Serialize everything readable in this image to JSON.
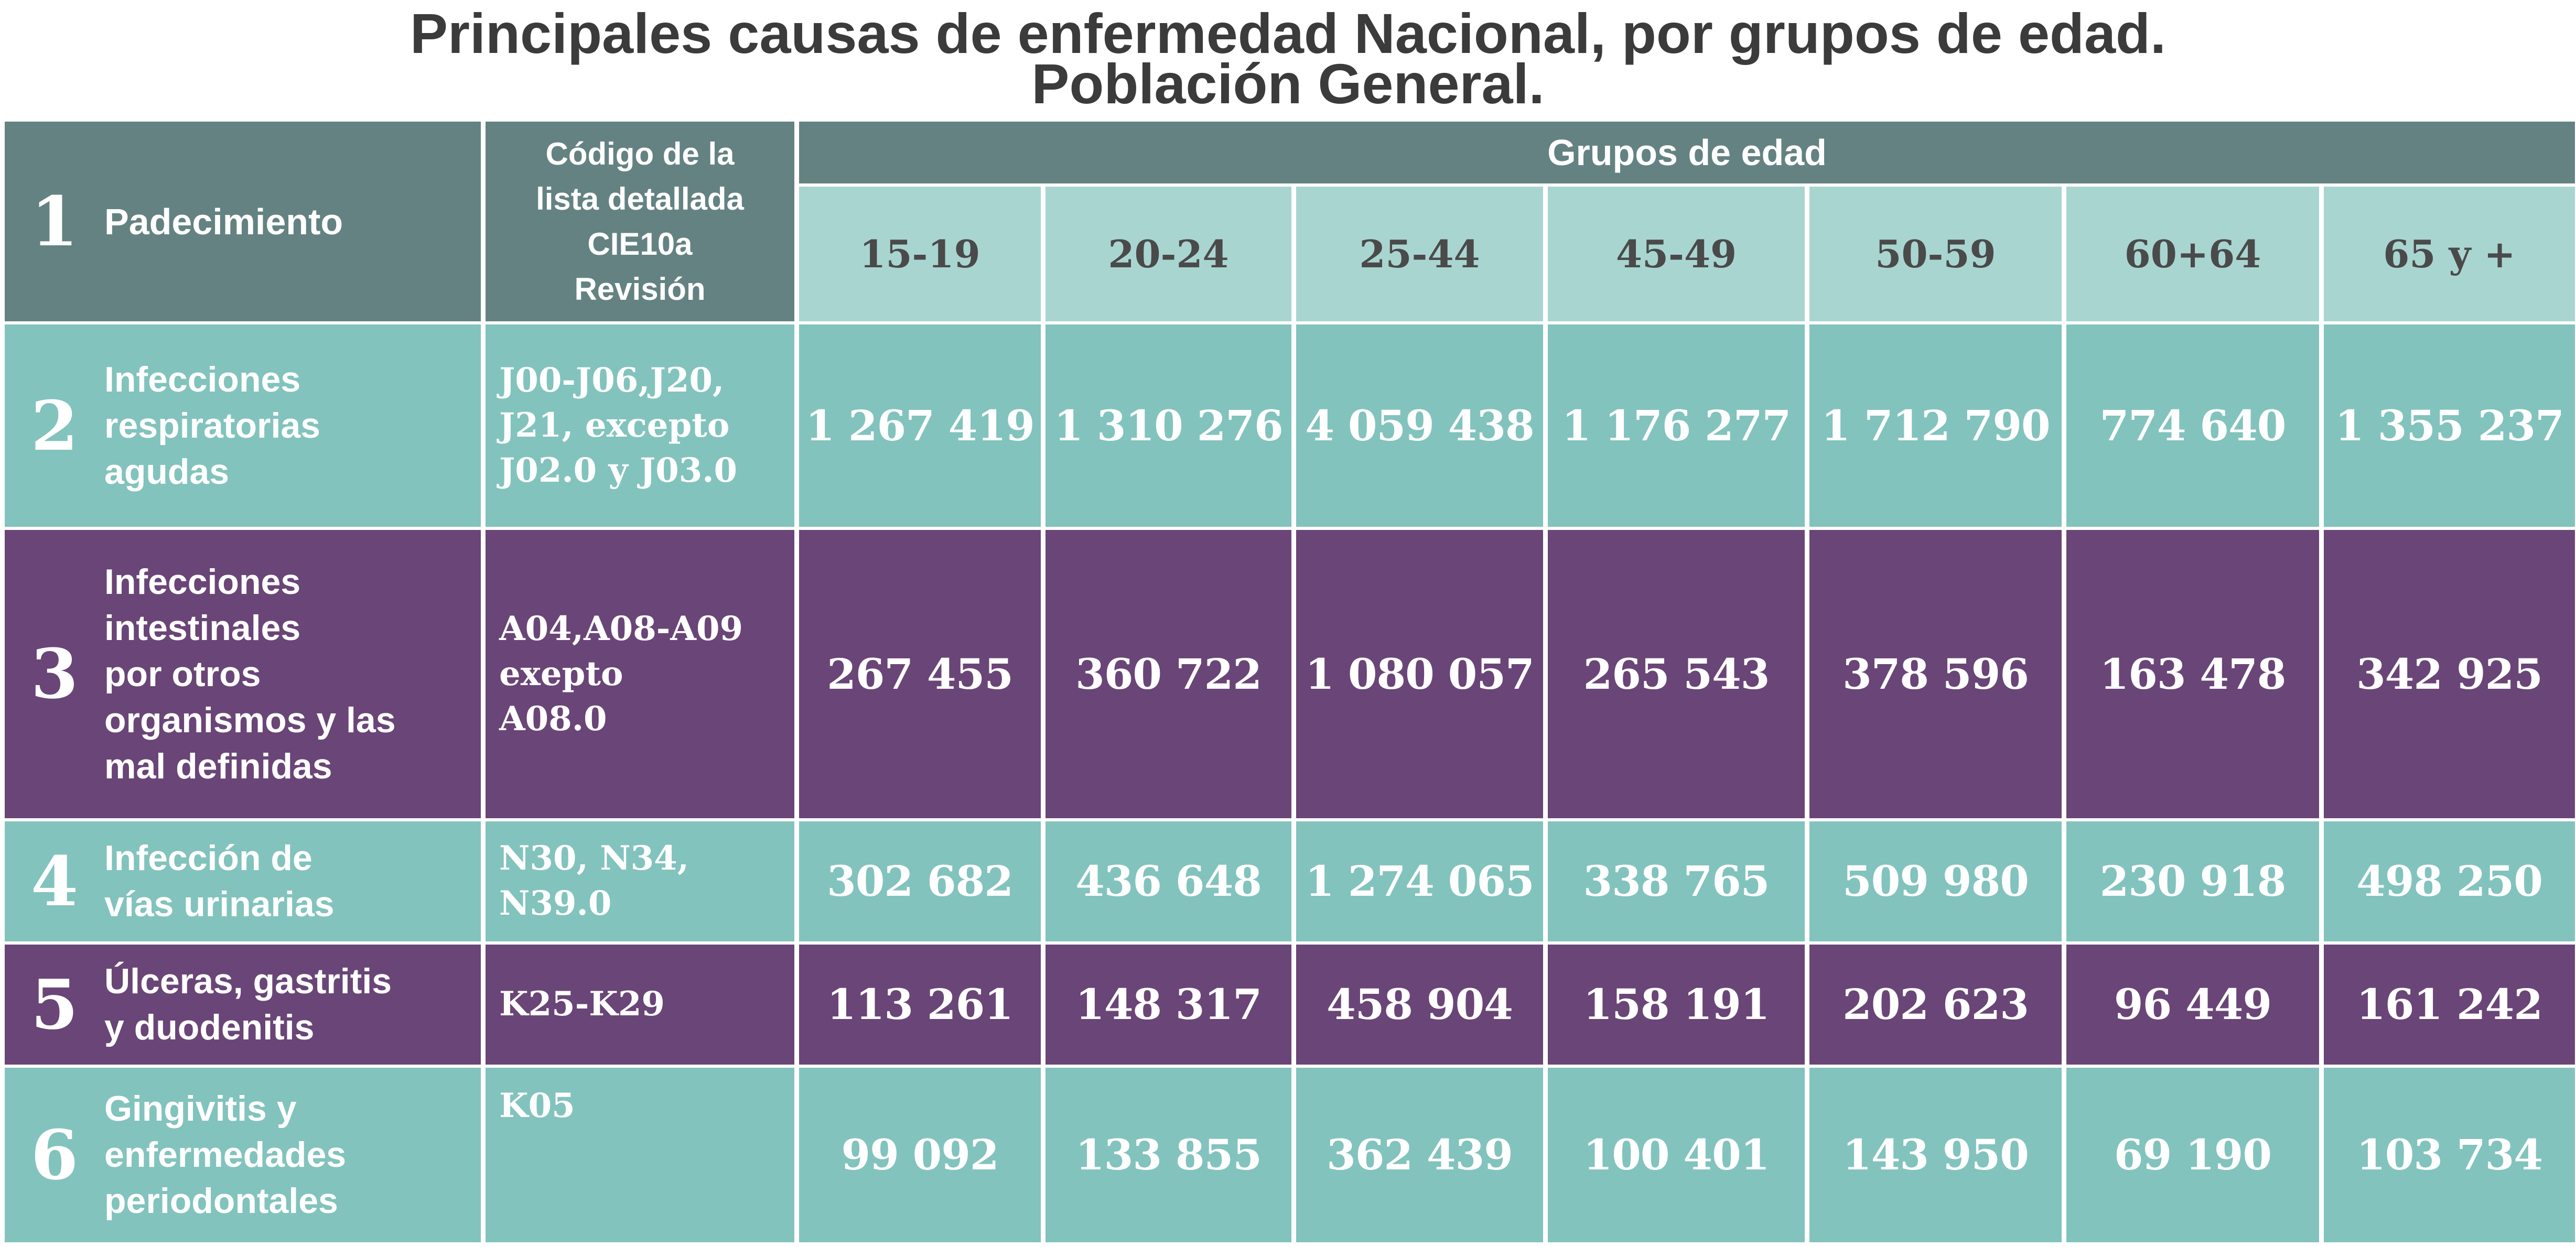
{
  "title_line1": "Principales causas de enfermedad Nacional, por grupos de edad.",
  "title_line2": "Población General.",
  "header": {
    "index": "1",
    "padecimiento": "Padecimiento",
    "codigo_lines": [
      "Código de la",
      "lista detallada",
      "CIE10a",
      "Revisión"
    ],
    "grupos": "Grupos de edad"
  },
  "chart_data": {
    "type": "table",
    "categories": [
      "15-19",
      "20-24",
      "25-44",
      "45-49",
      "50-59",
      "60+64",
      "65 y +"
    ],
    "rows": [
      {
        "index": "2",
        "label_lines": [
          "Infecciones",
          "respiratorias",
          "agudas"
        ],
        "code_lines": [
          "J00-J06,J20,",
          "J21, excepto",
          "J02.0 y J03.0"
        ],
        "values": [
          "1 267 419",
          "1 310 276",
          "4 059 438",
          "1 176 277",
          "1 712 790",
          "774 640",
          "1 355 237"
        ]
      },
      {
        "index": "3",
        "label_lines": [
          "Infecciones",
          "intestinales",
          "por otros",
          "organismos y las",
          "mal definidas"
        ],
        "code_lines": [
          "A04,A08-A09",
          "exepto",
          "A08.0"
        ],
        "values": [
          "267 455",
          "360 722",
          "1 080 057",
          "265 543",
          "378 596",
          "163 478",
          "342 925"
        ]
      },
      {
        "index": "4",
        "label_lines": [
          "Infección de",
          "vías urinarias"
        ],
        "code_lines": [
          "N30, N34,",
          "N39.0"
        ],
        "values": [
          "302 682",
          "436 648",
          "1 274 065",
          "338 765",
          "509 980",
          "230 918",
          "498 250"
        ]
      },
      {
        "index": "5",
        "label_lines": [
          "Úlceras, gastritis",
          "y duodenitis"
        ],
        "code_lines": [
          "K25-K29"
        ],
        "values": [
          "113 261",
          "148 317",
          "458 904",
          "158 191",
          "202 623",
          "96 449",
          "161 242"
        ]
      },
      {
        "index": "6",
        "label_lines": [
          "Gingivitis y",
          "enfermedades",
          "periodontales"
        ],
        "code_lines": [
          "K05"
        ],
        "values": [
          "99 092",
          "133 855",
          "362 439",
          "100 401",
          "143 950",
          "69 190",
          "103 734"
        ]
      }
    ]
  },
  "colors": {
    "header_dark": "#648282",
    "header_light": "#a9d5d1",
    "row_teal": "#82c3bd",
    "row_purple": "#6a4577"
  }
}
